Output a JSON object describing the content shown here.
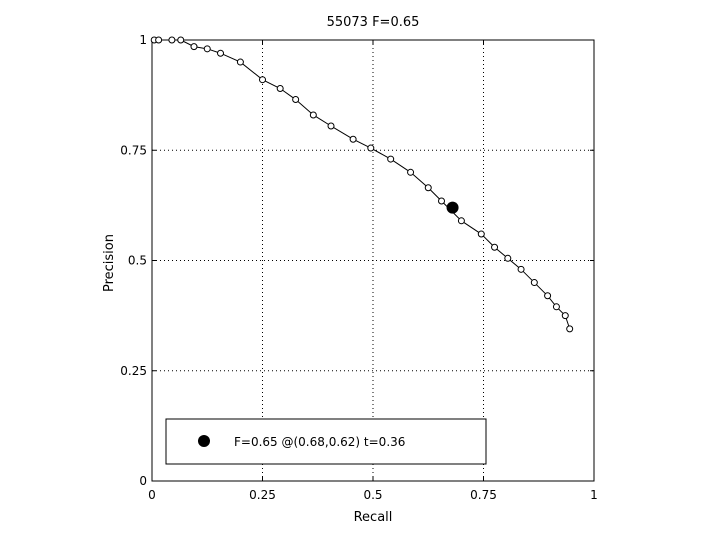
{
  "chart_data": {
    "type": "line",
    "title": "55073 F=0.65",
    "xlabel": "Recall",
    "ylabel": "Precision",
    "xlim": [
      0,
      1
    ],
    "ylim": [
      0,
      1
    ],
    "xticks": [
      0,
      0.25,
      0.5,
      0.75,
      1
    ],
    "xtick_labels": [
      "0",
      "0.25",
      "0.5",
      "0.75",
      "1"
    ],
    "yticks": [
      0,
      0.25,
      0.5,
      0.75,
      1
    ],
    "ytick_labels": [
      "0",
      "0.25",
      "0.5",
      "0.75",
      "1"
    ],
    "grid": true,
    "legend_position": "bottom-left",
    "series": [
      {
        "marker": "open-circle",
        "x": [
          0.005,
          0.015,
          0.045,
          0.065,
          0.095,
          0.125,
          0.155,
          0.2,
          0.25,
          0.29,
          0.325,
          0.365,
          0.405,
          0.455,
          0.495,
          0.54,
          0.585,
          0.625,
          0.655,
          0.7,
          0.745,
          0.775,
          0.805,
          0.835,
          0.865,
          0.895,
          0.915,
          0.935,
          0.945
        ],
        "y": [
          1.0,
          1.0,
          1.0,
          1.0,
          0.985,
          0.98,
          0.97,
          0.95,
          0.91,
          0.89,
          0.865,
          0.83,
          0.805,
          0.775,
          0.755,
          0.73,
          0.7,
          0.665,
          0.635,
          0.59,
          0.56,
          0.53,
          0.505,
          0.48,
          0.45,
          0.42,
          0.395,
          0.375,
          0.345
        ]
      }
    ],
    "highlight": {
      "x": 0.68,
      "y": 0.62
    },
    "legend_label": "F=0.65 @(0.68,0.62) t=0.36"
  }
}
